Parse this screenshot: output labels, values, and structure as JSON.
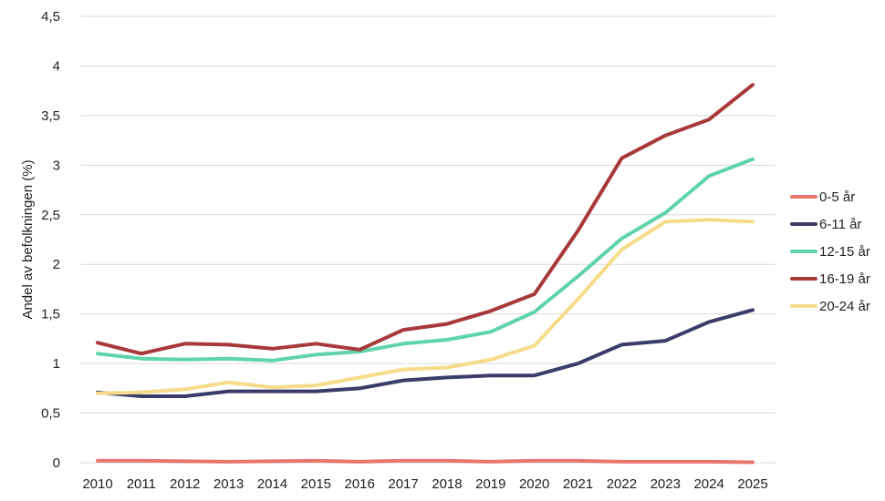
{
  "chart_data": {
    "type": "line",
    "title": "",
    "xlabel": "",
    "ylabel": "Andel av befolkningen (%)",
    "x": [
      "2010",
      "2011",
      "2012",
      "2013",
      "2014",
      "2015",
      "2016",
      "2017",
      "2018",
      "2019",
      "2020",
      "2021",
      "2022",
      "2023",
      "2024",
      "2025"
    ],
    "ylim": [
      0,
      4.5
    ],
    "yticks": [
      0,
      0.5,
      1,
      1.5,
      2,
      2.5,
      3,
      3.5,
      4,
      4.5
    ],
    "ytick_labels": [
      "0",
      "0,5",
      "1",
      "1,5",
      "2",
      "2,5",
      "3",
      "3,5",
      "4",
      "4,5"
    ],
    "grid": true,
    "legend_position": "right",
    "series": [
      {
        "name": "0-5 år",
        "color": "#E8766A",
        "values": [
          0.02,
          0.02,
          0.015,
          0.01,
          0.015,
          0.02,
          0.01,
          0.02,
          0.02,
          0.01,
          0.02,
          0.02,
          0.01,
          0.01,
          0.01,
          0.005
        ]
      },
      {
        "name": "6-11 år",
        "color": "#3B3C6B",
        "values": [
          0.71,
          0.67,
          0.67,
          0.72,
          0.72,
          0.72,
          0.75,
          0.83,
          0.86,
          0.88,
          0.88,
          1.0,
          1.19,
          1.23,
          1.42,
          1.54
        ]
      },
      {
        "name": "12-15 år",
        "color": "#5FD4A8",
        "values": [
          1.1,
          1.05,
          1.04,
          1.05,
          1.03,
          1.09,
          1.12,
          1.2,
          1.24,
          1.32,
          1.52,
          1.88,
          2.26,
          2.52,
          2.89,
          3.06
        ]
      },
      {
        "name": "16-19 år",
        "color": "#A8393A",
        "values": [
          1.21,
          1.1,
          1.2,
          1.19,
          1.15,
          1.2,
          1.14,
          1.34,
          1.4,
          1.53,
          1.7,
          2.34,
          3.07,
          3.3,
          3.46,
          3.81
        ]
      },
      {
        "name": "20-24 år",
        "color": "#F6DC8A",
        "values": [
          0.7,
          0.71,
          0.74,
          0.81,
          0.76,
          0.78,
          0.86,
          0.94,
          0.96,
          1.04,
          1.18,
          1.65,
          2.15,
          2.43,
          2.45,
          2.43
        ]
      }
    ]
  }
}
